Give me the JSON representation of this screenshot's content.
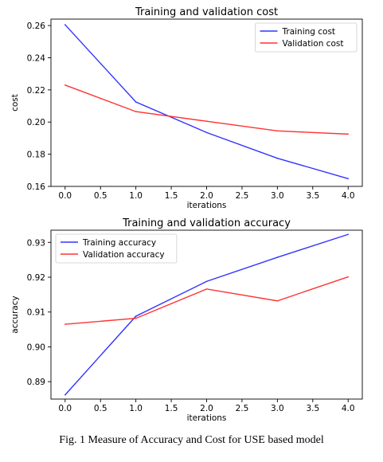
{
  "chart_data": [
    {
      "type": "line",
      "title": "Training and validation cost",
      "xlabel": "iterations",
      "ylabel": "cost",
      "x": [
        0,
        1,
        2,
        3,
        4
      ],
      "xlim": [
        -0.2,
        4.2
      ],
      "ylim": [
        0.16,
        0.264
      ],
      "xticks": [
        0.0,
        0.5,
        1.0,
        1.5,
        2.0,
        2.5,
        3.0,
        3.5,
        4.0
      ],
      "xtick_labels": [
        "0.0",
        "0.5",
        "1.0",
        "1.5",
        "2.0",
        "2.5",
        "3.0",
        "3.5",
        "4.0"
      ],
      "yticks": [
        0.16,
        0.18,
        0.2,
        0.22,
        0.24,
        0.26
      ],
      "ytick_labels": [
        "0.16",
        "0.18",
        "0.20",
        "0.22",
        "0.24",
        "0.26"
      ],
      "legend_position": "top-right",
      "grid": false,
      "series": [
        {
          "name": "Training cost",
          "color": "#3333ff",
          "values": [
            0.2605,
            0.2125,
            0.1935,
            0.1775,
            0.1648
          ]
        },
        {
          "name": "Validation cost",
          "color": "#ff3333",
          "values": [
            0.223,
            0.2065,
            0.2005,
            0.1945,
            0.1925
          ]
        }
      ]
    },
    {
      "type": "line",
      "title": "Training and validation accuracy",
      "xlabel": "iterations",
      "ylabel": "accuracy",
      "x": [
        0,
        1,
        2,
        3,
        4
      ],
      "xlim": [
        -0.2,
        4.2
      ],
      "ylim": [
        0.885,
        0.9335
      ],
      "xticks": [
        0.0,
        0.5,
        1.0,
        1.5,
        2.0,
        2.5,
        3.0,
        3.5,
        4.0
      ],
      "xtick_labels": [
        "0.0",
        "0.5",
        "1.0",
        "1.5",
        "2.0",
        "2.5",
        "3.0",
        "3.5",
        "4.0"
      ],
      "yticks": [
        0.89,
        0.9,
        0.91,
        0.92,
        0.93
      ],
      "ytick_labels": [
        "0.89",
        "0.90",
        "0.91",
        "0.92",
        "0.93"
      ],
      "legend_position": "top-left",
      "grid": false,
      "series": [
        {
          "name": "Training accuracy",
          "color": "#3333ff",
          "values": [
            0.8862,
            0.9088,
            0.9188,
            0.9257,
            0.9323
          ]
        },
        {
          "name": "Validation accuracy",
          "color": "#ff3333",
          "values": [
            0.9065,
            0.9082,
            0.9166,
            0.9132,
            0.9201
          ]
        }
      ]
    }
  ],
  "caption": "Fig. 1 Measure of Accuracy and Cost for USE based model"
}
